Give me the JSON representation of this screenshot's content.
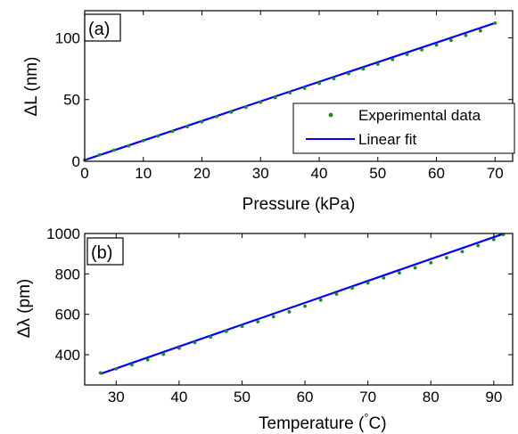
{
  "colors": {
    "markers": "#1f8a1f",
    "fit_line": "#0000ff",
    "axes": "#000000",
    "background": "#ffffff"
  },
  "chart_data": [
    {
      "type": "scatter",
      "panel_label": "(a)",
      "xlabel": "Pressure (kPa)",
      "ylabel": "ΔL (nm)",
      "xlim": [
        0,
        73
      ],
      "ylim": [
        0,
        122
      ],
      "xticks": [
        0,
        10,
        20,
        30,
        40,
        50,
        60,
        70
      ],
      "yticks": [
        0,
        50,
        100
      ],
      "grid": false,
      "legend_position": "bottom-right",
      "series": [
        {
          "name": "Experimental data",
          "kind": "markers",
          "x": [
            0,
            2.5,
            5,
            7.5,
            10,
            12.5,
            15,
            17.5,
            20,
            22.5,
            25,
            27.5,
            30,
            32.5,
            35,
            37.5,
            40,
            42.5,
            45,
            47.5,
            50,
            52.5,
            55,
            57.5,
            60,
            62.5,
            65,
            67.5,
            70
          ],
          "y": [
            1,
            5.2,
            9,
            12.5,
            16.8,
            20.5,
            24.2,
            28,
            32,
            36.2,
            39.8,
            43.8,
            47.8,
            51.5,
            55.5,
            59.2,
            63.2,
            67,
            71,
            74.8,
            78.7,
            82.5,
            86.5,
            90.3,
            94.2,
            98,
            102,
            105.7,
            112
          ]
        },
        {
          "name": "Linear fit",
          "kind": "line",
          "x": [
            0,
            70
          ],
          "y": [
            1,
            112
          ]
        }
      ]
    },
    {
      "type": "scatter",
      "panel_label": "(b)",
      "xlabel": "Temperature (",
      "xlabel_degree": "°",
      "xlabel_unit": "C)",
      "ylabel": "Δλ (pm)",
      "xlim": [
        25,
        93
      ],
      "ylim": [
        250,
        1000
      ],
      "xticks": [
        30,
        40,
        50,
        60,
        70,
        80,
        90
      ],
      "yticks": [
        400,
        600,
        800,
        1000
      ],
      "grid": false,
      "series": [
        {
          "name": "Experimental data",
          "kind": "markers",
          "x": [
            27.5,
            30,
            32.5,
            35,
            37.5,
            40,
            42.5,
            45,
            47.5,
            50,
            52.5,
            55,
            57.5,
            60,
            62.5,
            65,
            67.5,
            70,
            72.5,
            75,
            77.5,
            80,
            82.5,
            85,
            87.5,
            90,
            91.5
          ],
          "y": [
            310,
            330,
            350,
            375,
            402,
            432,
            460,
            487,
            515,
            540,
            563,
            588,
            612,
            640,
            670,
            700,
            730,
            755,
            780,
            805,
            830,
            855,
            880,
            910,
            940,
            970,
            995
          ]
        },
        {
          "name": "Linear fit",
          "kind": "line",
          "x": [
            27.5,
            91.5
          ],
          "y": [
            305,
            998
          ]
        }
      ]
    }
  ]
}
